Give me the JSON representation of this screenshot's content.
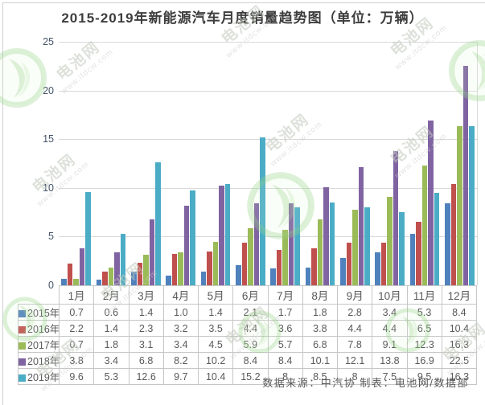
{
  "title": "2015-2019年新能源汽车月度销量趋势图（单位：万辆）",
  "source_note": "数据来源：中汽协  制表：电池网/数据部",
  "watermark": {
    "brand": "电池网",
    "url": "www.itdcw.com"
  },
  "chart_data": {
    "type": "bar",
    "title": "2015-2019年新能源汽车月度销量趋势图（单位：万辆）",
    "unit": "万辆",
    "categories": [
      "1月",
      "2月",
      "3月",
      "4月",
      "5月",
      "6月",
      "7月",
      "8月",
      "9月",
      "10月",
      "11月",
      "12月"
    ],
    "series": [
      {
        "name": "2015年",
        "color": "#4f81bd",
        "values": [
          0.7,
          0.6,
          1.4,
          1.0,
          1.4,
          2.1,
          1.7,
          1.8,
          2.8,
          3.4,
          5.3,
          8.4
        ],
        "display": [
          "0.7",
          "0.6",
          "1.4",
          "1.0",
          "1.4",
          "2.1",
          "1.7",
          "1.8",
          "2.8",
          "3.4",
          "5.3",
          "8.4"
        ]
      },
      {
        "name": "2016年",
        "color": "#c0504d",
        "values": [
          2.2,
          1.4,
          2.3,
          3.2,
          3.5,
          4.4,
          3.6,
          3.8,
          4.4,
          4.4,
          6.5,
          10.4
        ],
        "display": [
          "2.2",
          "1.4",
          "2.3",
          "3.2",
          "3.5",
          "4.4",
          "3.6",
          "3.8",
          "4.4",
          "4.4",
          "6.5",
          "10.4"
        ]
      },
      {
        "name": "2017年",
        "color": "#9bbb59",
        "values": [
          0.7,
          1.8,
          3.1,
          3.4,
          4.5,
          5.9,
          5.7,
          6.8,
          7.8,
          9.1,
          12.3,
          16.3
        ],
        "display": [
          "0.7",
          "1.8",
          "3.1",
          "3.4",
          "4.5",
          "5.9",
          "5.7",
          "6.8",
          "7.8",
          "9.1",
          "12.3",
          "16.3"
        ]
      },
      {
        "name": "2018年",
        "color": "#8064a2",
        "values": [
          3.8,
          3.4,
          6.8,
          8.2,
          10.2,
          8.4,
          8.4,
          10.1,
          12.1,
          13.8,
          16.9,
          22.5
        ],
        "display": [
          "3.8",
          "3.4",
          "6.8",
          "8.2",
          "10.2",
          "8.4",
          "8.4",
          "10.1",
          "12.1",
          "13.8",
          "16.9",
          "22.5"
        ]
      },
      {
        "name": "2019年",
        "color": "#4bacc6",
        "values": [
          9.6,
          5.3,
          12.6,
          9.7,
          10.4,
          15.2,
          8,
          8.5,
          8,
          7.5,
          9.5,
          16.3
        ],
        "display": [
          "9.6",
          "5.3",
          "12.6",
          "9.7",
          "10.4",
          "15.2",
          "8",
          "8.5",
          "8",
          "7.5",
          "9.5",
          "16.3"
        ]
      }
    ],
    "ylim": [
      0,
      25
    ],
    "yticks": [
      0,
      5,
      10,
      15,
      20,
      25
    ],
    "grid": true,
    "legend_position": "data-table-left",
    "xlabel": "",
    "ylabel": ""
  }
}
